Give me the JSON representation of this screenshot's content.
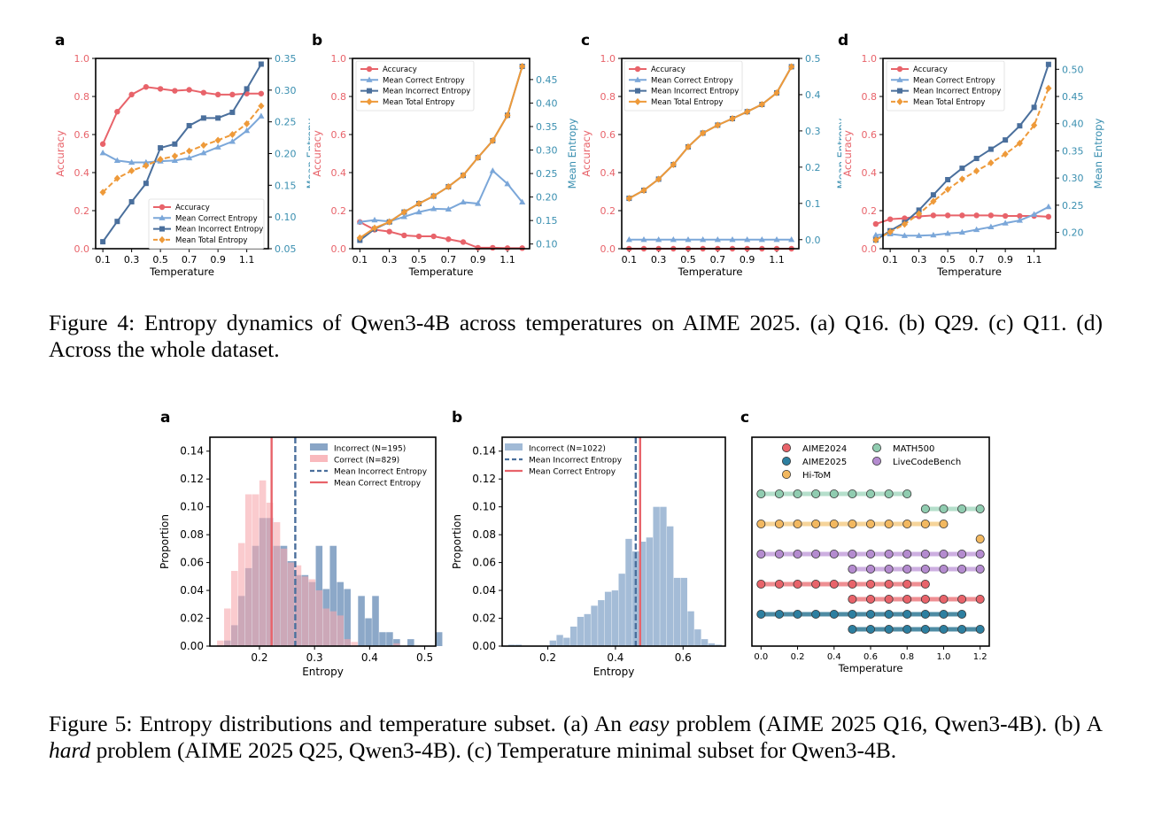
{
  "figure4": {
    "caption": "Figure 4: Entropy dynamics of Qwen3-4B across temperatures on AIME 2025. (a) Q16. (b) Q29. (c) Q11. (d) Across the whole dataset."
  },
  "figure5": {
    "caption_parts": [
      "Figure 5: Entropy distributions and temperature subset. (a) An ",
      "easy",
      " problem (AIME 2025 Q16, Qwen3-4B). (b) A ",
      "hard",
      " problem (AIME 2025 Q25, Qwen3-4B). (c) Temperature minimal subset for Qwen3-4B."
    ]
  },
  "colors": {
    "accuracy": "#e8636a",
    "correct": "#7ba7d9",
    "incorrect": "#4a6f9c",
    "total": "#ee9a3a",
    "left_axis": "#e8636a",
    "right_axis": "#3a8fb0"
  },
  "chart_data": [
    {
      "id": "fig4a",
      "panel_label": "a",
      "type": "line",
      "xlabel": "Temperature",
      "ylabel_left": "Accuracy",
      "ylabel_right": "Mean Entropy",
      "x": [
        0.1,
        0.2,
        0.3,
        0.4,
        0.5,
        0.6,
        0.7,
        0.8,
        0.9,
        1.0,
        1.1,
        1.2
      ],
      "xticks": [
        "0.1",
        "0.3",
        "0.5",
        "0.7",
        "0.9",
        "1.1"
      ],
      "ylim_left": [
        0,
        1.0
      ],
      "yticks_left": [
        "0.0",
        "0.2",
        "0.4",
        "0.6",
        "0.8",
        "1.0"
      ],
      "ylim_right": [
        0.05,
        0.35
      ],
      "yticks_right": [
        "0.05",
        "0.10",
        "0.15",
        "0.20",
        "0.25",
        "0.30",
        "0.35"
      ],
      "legend_position": "lower-right",
      "series": [
        {
          "name": "Accuracy",
          "axis": "left",
          "style": "solid",
          "marker": "circle",
          "values": [
            0.55,
            0.72,
            0.81,
            0.85,
            0.84,
            0.83,
            0.835,
            0.82,
            0.81,
            0.81,
            0.815,
            0.815
          ]
        },
        {
          "name": "Mean Correct Entropy",
          "axis": "right",
          "style": "solid",
          "marker": "triangle",
          "values": [
            0.201,
            0.189,
            0.186,
            0.186,
            0.188,
            0.189,
            0.193,
            0.201,
            0.21,
            0.219,
            0.236,
            0.259
          ]
        },
        {
          "name": "Mean Incorrect Entropy",
          "axis": "right",
          "style": "solid",
          "marker": "square",
          "values": [
            0.061,
            0.093,
            0.124,
            0.153,
            0.209,
            0.215,
            0.244,
            0.256,
            0.256,
            0.265,
            0.302,
            0.341
          ]
        },
        {
          "name": "Mean Total Entropy",
          "axis": "right",
          "style": "dashed",
          "marker": "diamond",
          "values": [
            0.139,
            0.161,
            0.173,
            0.181,
            0.191,
            0.196,
            0.204,
            0.213,
            0.221,
            0.23,
            0.247,
            0.275
          ]
        }
      ]
    },
    {
      "id": "fig4b",
      "panel_label": "b",
      "type": "line",
      "xlabel": "Temperature",
      "ylabel_left": "Accuracy",
      "ylabel_right": "Mean Entropy",
      "x": [
        0.1,
        0.2,
        0.3,
        0.4,
        0.5,
        0.6,
        0.7,
        0.8,
        0.9,
        1.0,
        1.1,
        1.2
      ],
      "xticks": [
        "0.1",
        "0.3",
        "0.5",
        "0.7",
        "0.9",
        "1.1"
      ],
      "ylim_left": [
        0,
        1.0
      ],
      "yticks_left": [
        "0.0",
        "0.2",
        "0.4",
        "0.6",
        "0.8",
        "1.0"
      ],
      "ylim_right": [
        0.09,
        0.495
      ],
      "yticks_right": [
        "0.10",
        "0.15",
        "0.20",
        "0.25",
        "0.30",
        "0.35",
        "0.40",
        "0.45"
      ],
      "legend_position": "upper-left",
      "series": [
        {
          "name": "Accuracy",
          "axis": "left",
          "style": "solid",
          "marker": "circle",
          "values": [
            0.14,
            0.1,
            0.09,
            0.07,
            0.065,
            0.065,
            0.05,
            0.035,
            0.005,
            0.005,
            0.003,
            0.003
          ]
        },
        {
          "name": "Mean Correct Entropy",
          "axis": "right",
          "style": "solid",
          "marker": "triangle",
          "values": [
            0.147,
            0.151,
            0.148,
            0.158,
            0.168,
            0.175,
            0.174,
            0.189,
            0.186,
            0.256,
            0.228,
            0.189
          ]
        },
        {
          "name": "Mean Incorrect Entropy",
          "axis": "right",
          "style": "solid",
          "marker": "square",
          "values": [
            0.108,
            0.132,
            0.147,
            0.168,
            0.186,
            0.202,
            0.222,
            0.246,
            0.284,
            0.32,
            0.374,
            0.478
          ]
        },
        {
          "name": "Mean Total Entropy",
          "axis": "right",
          "style": "solid",
          "marker": "diamond",
          "values": [
            0.113,
            0.134,
            0.147,
            0.168,
            0.186,
            0.202,
            0.222,
            0.246,
            0.284,
            0.32,
            0.374,
            0.478
          ]
        }
      ]
    },
    {
      "id": "fig4c",
      "panel_label": "c",
      "type": "line",
      "xlabel": "Temperature",
      "ylabel_left": "Accuracy",
      "ylabel_right": "Mean Entropy",
      "x": [
        0.1,
        0.2,
        0.3,
        0.4,
        0.5,
        0.6,
        0.7,
        0.8,
        0.9,
        1.0,
        1.1,
        1.2
      ],
      "xticks": [
        "0.1",
        "0.3",
        "0.5",
        "0.7",
        "0.9",
        "1.1"
      ],
      "ylim_left": [
        0,
        1.0
      ],
      "yticks_left": [
        "0.0",
        "0.2",
        "0.4",
        "0.6",
        "0.8",
        "1.0"
      ],
      "ylim_right": [
        -0.025,
        0.5
      ],
      "yticks_right": [
        "0.0",
        "0.1",
        "0.2",
        "0.3",
        "0.4",
        "0.5"
      ],
      "legend_position": "upper-left",
      "series": [
        {
          "name": "Accuracy",
          "axis": "left",
          "style": "solid",
          "marker": "circle",
          "values": [
            0,
            0,
            0,
            0,
            0,
            0,
            0,
            0,
            0,
            0,
            0,
            0
          ]
        },
        {
          "name": "Mean Correct Entropy",
          "axis": "right",
          "style": "solid",
          "marker": "triangle",
          "values": [
            0,
            0,
            0,
            0,
            0,
            0,
            0,
            0,
            0,
            0,
            0,
            0
          ]
        },
        {
          "name": "Mean Incorrect Entropy",
          "axis": "right",
          "style": "solid",
          "marker": "square",
          "values": [
            0.114,
            0.136,
            0.167,
            0.207,
            0.256,
            0.294,
            0.316,
            0.334,
            0.353,
            0.373,
            0.405,
            0.477
          ]
        },
        {
          "name": "Mean Total Entropy",
          "axis": "right",
          "style": "solid",
          "marker": "diamond",
          "values": [
            0.114,
            0.136,
            0.167,
            0.207,
            0.256,
            0.294,
            0.316,
            0.334,
            0.353,
            0.373,
            0.405,
            0.477
          ]
        }
      ]
    },
    {
      "id": "fig4d",
      "panel_label": "d",
      "type": "line",
      "xlabel": "Temperature",
      "ylabel_left": "Accuracy",
      "ylabel_right": "Mean Entropy",
      "x": [
        0.0,
        0.1,
        0.2,
        0.3,
        0.4,
        0.5,
        0.6,
        0.7,
        0.8,
        0.9,
        1.0,
        1.1,
        1.2
      ],
      "xticks": [
        "0.1",
        "0.3",
        "0.5",
        "0.7",
        "0.9",
        "1.1"
      ],
      "ylim_left": [
        0,
        1.0
      ],
      "yticks_left": [
        "0.0",
        "0.2",
        "0.4",
        "0.6",
        "0.8",
        "1.0"
      ],
      "ylim_right": [
        0.17,
        0.52
      ],
      "yticks_right": [
        "0.20",
        "0.25",
        "0.30",
        "0.35",
        "0.40",
        "0.45",
        "0.50"
      ],
      "legend_position": "upper-left",
      "series": [
        {
          "name": "Accuracy",
          "axis": "left",
          "style": "solid",
          "marker": "circle",
          "values": [
            0.13,
            0.155,
            0.16,
            0.17,
            0.175,
            0.175,
            0.175,
            0.175,
            0.175,
            0.172,
            0.172,
            0.172,
            0.168
          ]
        },
        {
          "name": "Mean Correct Entropy",
          "axis": "right",
          "style": "solid",
          "marker": "triangle",
          "values": [
            0.195,
            0.197,
            0.194,
            0.194,
            0.195,
            0.198,
            0.2,
            0.205,
            0.21,
            0.217,
            0.222,
            0.233,
            0.247
          ]
        },
        {
          "name": "Mean Incorrect Entropy",
          "axis": "right",
          "style": "solid",
          "marker": "square",
          "values": [
            0.186,
            0.203,
            0.218,
            0.241,
            0.269,
            0.297,
            0.318,
            0.336,
            0.353,
            0.37,
            0.396,
            0.43,
            0.509
          ]
        },
        {
          "name": "Mean Total Entropy",
          "axis": "right",
          "style": "dashed",
          "marker": "diamond",
          "values": [
            0.186,
            0.201,
            0.215,
            0.234,
            0.257,
            0.279,
            0.298,
            0.313,
            0.328,
            0.344,
            0.364,
            0.397,
            0.465
          ]
        }
      ]
    },
    {
      "id": "fig5a",
      "panel_label": "a",
      "type": "bar",
      "subtype": "histogram",
      "xlabel": "Entropy",
      "ylabel": "Proportion",
      "xlim": [
        0.11,
        0.52
      ],
      "xticks": [
        "0.2",
        "0.3",
        "0.4",
        "0.5"
      ],
      "ylim": [
        0,
        0.15
      ],
      "yticks": [
        "0.00",
        "0.02",
        "0.04",
        "0.06",
        "0.08",
        "0.10",
        "0.12",
        "0.14"
      ],
      "legend_position": "upper-right",
      "bin_start": 0.123,
      "bin_width": 0.0128,
      "series": [
        {
          "name": "Correct (N=829)",
          "color": "#f7a8ad",
          "values": [
            0.004,
            0.027,
            0.054,
            0.074,
            0.109,
            0.109,
            0.119,
            0.103,
            0.089,
            0.07,
            0.06,
            0.058,
            0.05,
            0.048,
            0.04,
            0.027,
            0.025,
            0.022,
            0.005,
            0.003,
            0.0,
            0.0,
            0.0,
            0.0,
            0.0,
            0.002,
            0.0,
            0.0,
            0.0,
            0.0,
            0.0,
            0.0
          ]
        },
        {
          "name": "Incorrect (N=195)",
          "color": "#6b8fb8",
          "values": [
            0.0,
            0.004,
            0.015,
            0.036,
            0.056,
            0.072,
            0.092,
            0.092,
            0.072,
            0.072,
            0.061,
            0.051,
            0.051,
            0.046,
            0.072,
            0.041,
            0.072,
            0.046,
            0.041,
            0.0,
            0.036,
            0.02,
            0.036,
            0.01,
            0.01,
            0.005,
            0.0,
            0.005,
            0.0,
            0.0,
            0.0,
            0.01
          ]
        }
      ],
      "vlines": [
        {
          "name": "Mean Incorrect Entropy",
          "x": 0.265,
          "style": "dashed",
          "color": "#4a6f9c"
        },
        {
          "name": "Mean Correct Entropy",
          "x": 0.222,
          "style": "solid",
          "color": "#e8636a"
        }
      ]
    },
    {
      "id": "fig5b",
      "panel_label": "b",
      "type": "bar",
      "subtype": "histogram",
      "xlabel": "Entropy",
      "ylabel": "Proportion",
      "xlim": [
        0.065,
        0.725
      ],
      "xticks": [
        "0.2",
        "0.4",
        "0.6"
      ],
      "ylim": [
        0,
        0.15
      ],
      "yticks": [
        "0.00",
        "0.02",
        "0.04",
        "0.06",
        "0.08",
        "0.10",
        "0.12",
        "0.14"
      ],
      "legend_position": "upper-left",
      "bin_start": 0.083,
      "bin_width": 0.0204,
      "series": [
        {
          "name": "Incorrect (N=1022)",
          "color": "#8aa9cc",
          "values": [
            0.001,
            0.001,
            0.0,
            0.0,
            0.0,
            0.0,
            0.004,
            0.008,
            0.006,
            0.014,
            0.021,
            0.023,
            0.029,
            0.033,
            0.039,
            0.04,
            0.052,
            0.077,
            0.068,
            0.075,
            0.078,
            0.1,
            0.1,
            0.086,
            0.049,
            0.049,
            0.025,
            0.012,
            0.005,
            0.002,
            0.001
          ]
        }
      ],
      "vlines": [
        {
          "name": "Mean Incorrect Entropy",
          "x": 0.46,
          "style": "dashed",
          "color": "#4a6f9c"
        },
        {
          "name": "Mean Correct Entropy",
          "x": 0.473,
          "style": "solid",
          "color": "#e8636a"
        }
      ]
    },
    {
      "id": "fig5c",
      "panel_label": "c",
      "type": "scatter",
      "xlabel": "Temperature",
      "xlim": [
        -0.05,
        1.25
      ],
      "xticks": [
        "0.0",
        "0.2",
        "0.4",
        "0.6",
        "0.8",
        "1.0",
        "1.2"
      ],
      "legend_position": "top",
      "legend": [
        {
          "name": "AIME2024",
          "color": "#e8636a"
        },
        {
          "name": "AIME2025",
          "color": "#2d7fa0"
        },
        {
          "name": "Hi-ToM",
          "color": "#f2b860"
        },
        {
          "name": "MATH500",
          "color": "#90ccb0"
        },
        {
          "name": "LiveCodeBench",
          "color": "#b48bcf"
        }
      ],
      "rows": [
        {
          "dataset": "MATH500",
          "color": "#90ccb0",
          "line": "#a8d9c2",
          "temps": [
            0.0,
            0.1,
            0.2,
            0.3,
            0.4,
            0.5,
            0.6,
            0.7,
            0.8
          ]
        },
        {
          "dataset": "MATH500",
          "color": "#90ccb0",
          "line": "#a8d9c2",
          "temps": [
            0.9,
            1.0,
            1.1,
            1.2
          ]
        },
        {
          "dataset": "Hi-ToM",
          "color": "#f2b860",
          "line": "#f4cc88",
          "temps": [
            0.0,
            0.1,
            0.2,
            0.3,
            0.4,
            0.5,
            0.6,
            0.7,
            0.8,
            0.9,
            1.0
          ]
        },
        {
          "dataset": "Hi-ToM",
          "color": "#f2b860",
          "line": "#f4cc88",
          "temps": [
            1.2
          ]
        },
        {
          "dataset": "LiveCodeBench",
          "color": "#b48bcf",
          "line": "#c4a1dc",
          "temps": [
            0.0,
            0.1,
            0.2,
            0.3,
            0.4,
            0.5,
            0.6,
            0.7,
            0.8,
            0.9,
            1.0,
            1.1,
            1.2
          ]
        },
        {
          "dataset": "LiveCodeBench",
          "color": "#b48bcf",
          "line": "#c4a1dc",
          "temps": [
            0.5,
            0.6,
            0.7,
            0.8,
            0.9,
            1.0,
            1.1,
            1.2
          ]
        },
        {
          "dataset": "AIME2024",
          "color": "#e8636a",
          "line": "#ec7b80",
          "temps": [
            0.0,
            0.1,
            0.2,
            0.3,
            0.4,
            0.5,
            0.6,
            0.7,
            0.8,
            0.9
          ]
        },
        {
          "dataset": "AIME2024",
          "color": "#e8636a",
          "line": "#ec7b80",
          "temps": [
            0.5,
            0.6,
            0.7,
            0.8,
            0.9,
            1.0,
            1.1,
            1.2
          ]
        },
        {
          "dataset": "AIME2025",
          "color": "#2d7fa0",
          "line": "#2f7894",
          "temps": [
            0.0,
            0.1,
            0.2,
            0.3,
            0.4,
            0.5,
            0.6,
            0.7,
            0.8,
            0.9,
            1.0,
            1.1
          ]
        },
        {
          "dataset": "AIME2025",
          "color": "#2d7fa0",
          "line": "#2f7894",
          "temps": [
            0.5,
            0.6,
            0.7,
            0.8,
            0.9,
            1.0,
            1.1,
            1.2
          ]
        }
      ]
    }
  ]
}
